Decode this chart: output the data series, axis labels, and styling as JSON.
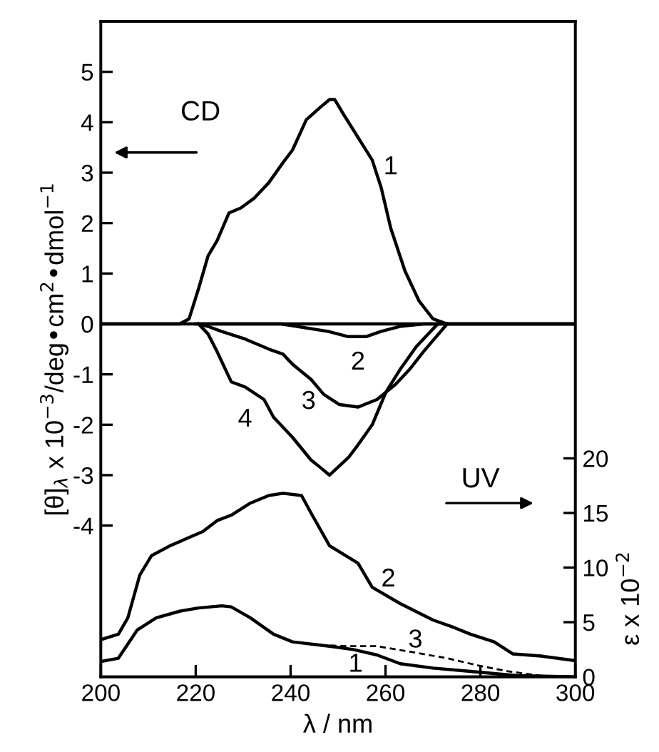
{
  "chart_data": {
    "type": "line",
    "xlabel": "λ / nm",
    "ylabel": "[θ]$_{λ}$ x 10$^{−3}$/deg•cm$^{2}$•dmol$^{−1}$",
    "y2label": "ε x 10$^{−2}$",
    "xlim": [
      200,
      300
    ],
    "xticks": [
      200,
      220,
      240,
      260,
      280,
      300
    ],
    "ylim": [
      -7,
      6
    ],
    "yticks": [
      -4,
      -3,
      -2,
      -1,
      0,
      1,
      2,
      3,
      4,
      5
    ],
    "y2lim": [
      0,
      60
    ],
    "y2ticks": [
      0,
      5,
      10,
      15,
      20
    ],
    "grid": false,
    "legend": false,
    "marker": "none",
    "ref_lines": [
      {
        "axis": "y",
        "value": 0,
        "color": "#000000"
      }
    ],
    "annotations": [
      "CD",
      "UV"
    ],
    "series": [
      {
        "name": "1",
        "color": "#000000",
        "line_style": "solid",
        "x": [
          200,
          216.6,
          218.6,
          220.6,
          222.6,
          224.5,
          227.0,
          229.5,
          232.4,
          235.4,
          238.4,
          240.4,
          243.3,
          246.3,
          248.2,
          249.3,
          251.2,
          254.2,
          257.2,
          259.1,
          261.1,
          264.1,
          267.1,
          270.0,
          273.0,
          277.9,
          300
        ],
        "values": [
          0,
          0,
          0.1,
          0.7,
          1.35,
          1.65,
          2.2,
          2.3,
          2.5,
          2.8,
          3.2,
          3.45,
          4.05,
          4.3,
          4.45,
          4.45,
          4.15,
          3.7,
          3.25,
          2.7,
          1.9,
          1.05,
          0.45,
          0.1,
          0,
          0,
          0
        ]
      },
      {
        "name": "2",
        "color": "#000000",
        "line_style": "solid",
        "x": [
          220,
          238,
          248,
          252,
          256,
          259,
          263,
          268,
          300
        ],
        "values": [
          0,
          0,
          -0.15,
          -0.25,
          -0.25,
          -0.15,
          -0.05,
          0,
          0
        ]
      },
      {
        "name": "3",
        "color": "#000000",
        "line_style": "solid",
        "x": [
          220.6,
          222.6,
          225.5,
          230.4,
          235.4,
          238.4,
          240.4,
          244.3,
          247,
          250.3,
          254.2,
          258.2,
          262.1,
          265.1,
          268,
          273
        ],
        "values": [
          0,
          -0.05,
          -0.15,
          -0.3,
          -0.5,
          -0.6,
          -0.8,
          -1.1,
          -1.4,
          -1.6,
          -1.65,
          -1.5,
          -1.2,
          -0.9,
          -0.55,
          0
        ]
      },
      {
        "name": "4",
        "color": "#000000",
        "line_style": "solid",
        "x": [
          220.6,
          222.6,
          224.5,
          226.5,
          227.5,
          230.4,
          234.4,
          236.4,
          240.4,
          244.3,
          246.3,
          248.2,
          252.2,
          254.2,
          257.2,
          260.1,
          263.1,
          266.5,
          271
        ],
        "values": [
          0,
          -0.2,
          -0.55,
          -0.95,
          -1.15,
          -1.25,
          -1.5,
          -1.85,
          -2.25,
          -2.7,
          -2.85,
          -3.0,
          -2.65,
          -2.4,
          -2.0,
          -1.35,
          -0.9,
          -0.45,
          0
        ]
      },
      {
        "name": "2",
        "color": "#000000",
        "line_style": "solid",
        "axis": "y2",
        "x": [
          200,
          203.7,
          205.7,
          208.2,
          210.7,
          214.6,
          221.5,
          224.5,
          227.5,
          231.5,
          235.4,
          238.4,
          242.3,
          244.3,
          248.2,
          254.2,
          257.2,
          263.1,
          270.0,
          274.5,
          277.9,
          282.9,
          286.8,
          292.8,
          299.7
        ],
        "values": [
          3.4,
          3.9,
          5.4,
          9.3,
          11.1,
          12.0,
          13.3,
          14.3,
          14.8,
          15.9,
          16.6,
          16.8,
          16.6,
          15.0,
          12.0,
          10.4,
          8.2,
          6.7,
          5.2,
          4.5,
          3.9,
          3.2,
          2.1,
          1.9,
          1.5
        ]
      },
      {
        "name": "1",
        "color": "#000000",
        "line_style": "solid",
        "axis": "y2",
        "x": [
          200,
          203.7,
          207.7,
          211.7,
          216.6,
          220.6,
          225.5,
          227.5,
          231.5,
          236.4,
          240.4,
          248.2,
          253.2,
          258.2,
          263.1,
          270,
          277.9,
          287.8,
          299.7
        ],
        "values": [
          1.4,
          1.7,
          4.3,
          5.4,
          6.0,
          6.3,
          6.5,
          6.4,
          5.4,
          3.9,
          3.2,
          2.8,
          2.5,
          2.0,
          1.2,
          0.8,
          0.5,
          0.1,
          0
        ]
      },
      {
        "name": "3",
        "color": "#000000",
        "line_style": "dashed",
        "axis": "y2",
        "x": [
          227.5,
          231.5,
          236.4,
          240.4,
          246.7,
          252.2,
          258.2,
          265.1,
          273.0,
          279.9,
          285.8,
          292.8,
          299.7
        ],
        "values": [
          6.4,
          5.4,
          3.9,
          3.2,
          2.9,
          2.8,
          2.8,
          2.3,
          1.7,
          1.0,
          0.5,
          0.1,
          0
        ]
      }
    ]
  }
}
